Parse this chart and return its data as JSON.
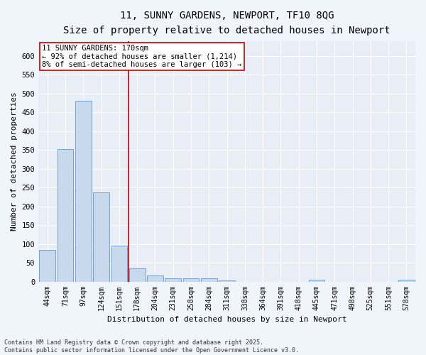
{
  "title_line1": "11, SUNNY GARDENS, NEWPORT, TF10 8QG",
  "title_line2": "Size of property relative to detached houses in Newport",
  "xlabel": "Distribution of detached houses by size in Newport",
  "ylabel": "Number of detached properties",
  "categories": [
    "44sqm",
    "71sqm",
    "97sqm",
    "124sqm",
    "151sqm",
    "178sqm",
    "204sqm",
    "231sqm",
    "258sqm",
    "284sqm",
    "311sqm",
    "338sqm",
    "364sqm",
    "391sqm",
    "418sqm",
    "445sqm",
    "471sqm",
    "498sqm",
    "525sqm",
    "551sqm",
    "578sqm"
  ],
  "values": [
    85,
    352,
    480,
    237,
    96,
    35,
    16,
    8,
    8,
    8,
    3,
    0,
    0,
    0,
    0,
    5,
    0,
    0,
    0,
    0,
    5
  ],
  "bar_color": "#c8d8ed",
  "bar_edge_color": "#6699cc",
  "highlight_color": "#cc0000",
  "annotation_text": "11 SUNNY GARDENS: 170sqm\n← 92% of detached houses are smaller (1,214)\n8% of semi-detached houses are larger (103) →",
  "ylim": [
    0,
    640
  ],
  "yticks": [
    0,
    50,
    100,
    150,
    200,
    250,
    300,
    350,
    400,
    450,
    500,
    550,
    600
  ],
  "vline_x": 4.5,
  "footer_line1": "Contains HM Land Registry data © Crown copyright and database right 2025.",
  "footer_line2": "Contains public sector information licensed under the Open Government Licence v3.0.",
  "fig_bg_color": "#f0f4fb",
  "plot_bg_color": "#e8edf6",
  "grid_color": "#ffffff",
  "title_fontsize": 10,
  "subtitle_fontsize": 8.5,
  "tick_fontsize": 7,
  "ylabel_fontsize": 8,
  "xlabel_fontsize": 8,
  "annotation_fontsize": 7.5,
  "footer_fontsize": 6
}
